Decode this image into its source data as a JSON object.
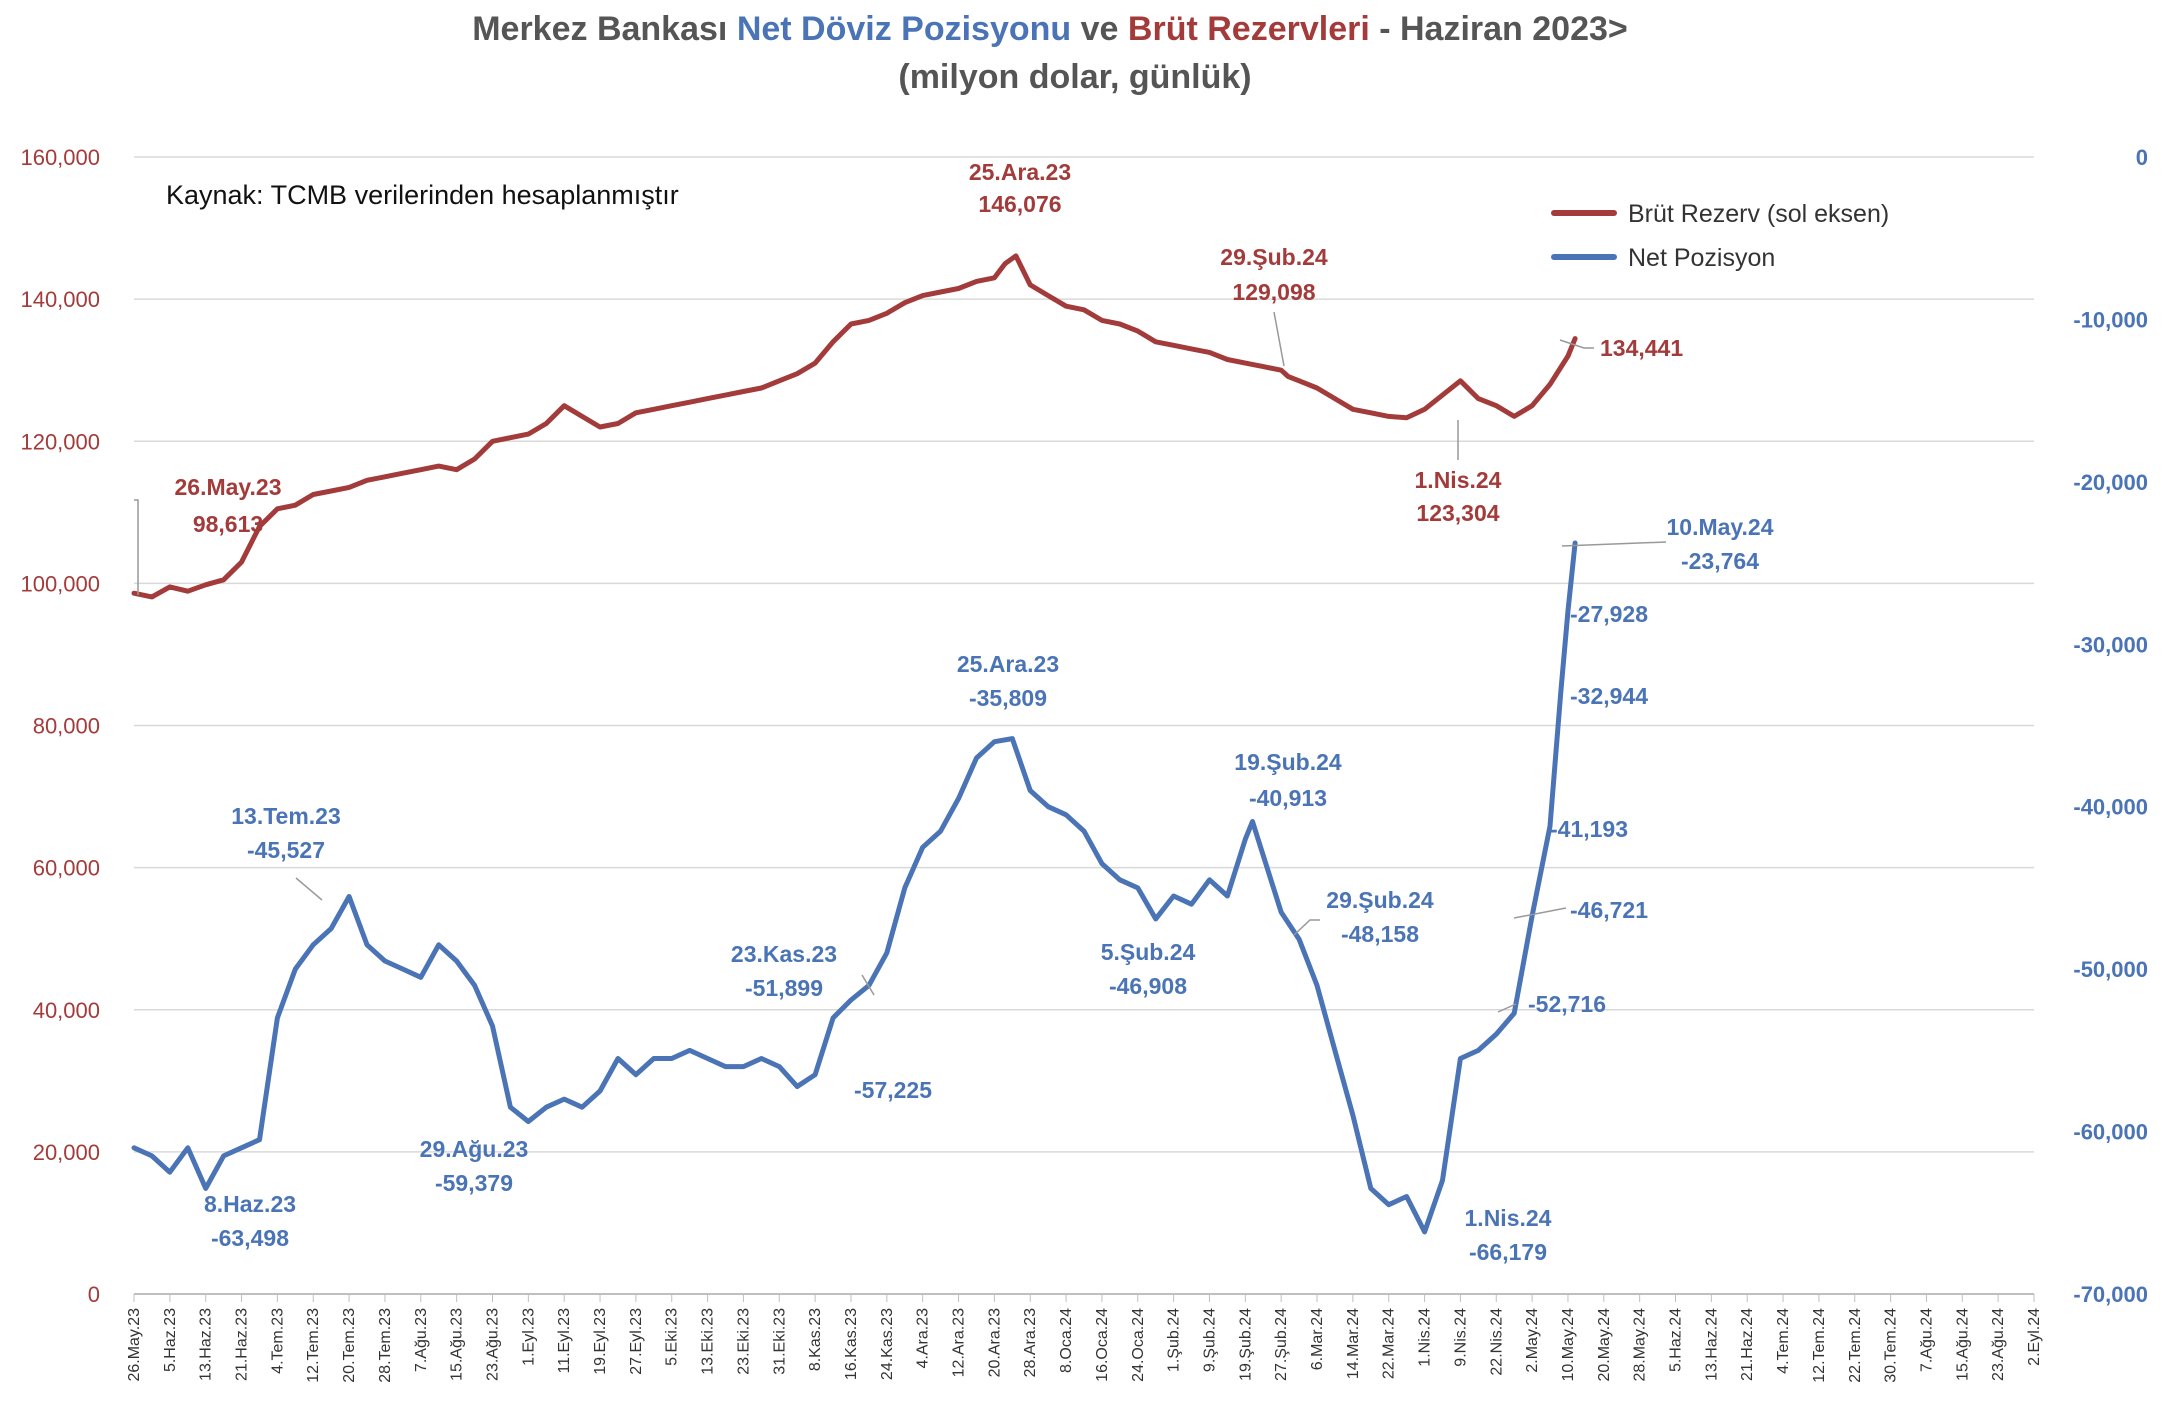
{
  "title": {
    "part1": "Merkez Bankası ",
    "part2": "Net Döviz Pozisyonu",
    "part3": " ve ",
    "part4": "Brüt Rezervleri",
    "part5": " - Haziran 2023>",
    "subtitle": "(milyon dolar, günlük)"
  },
  "source_note": "Kaynak: TCMB verilerinden  hesaplanmıştır",
  "colors": {
    "brut": "#A33B3B",
    "net": "#4A74B5",
    "title_gray": "#555555",
    "grid": "#D9D9D9"
  },
  "chart_data": {
    "type": "line",
    "left_axis": {
      "ticks": [
        "160,000",
        "140,000",
        "120,000",
        "100,000",
        "80,000",
        "60,000",
        "40,000",
        "20,000",
        "0"
      ],
      "values": [
        160000,
        140000,
        120000,
        100000,
        80000,
        60000,
        40000,
        20000,
        0
      ],
      "ylim": [
        0,
        160000
      ]
    },
    "right_axis": {
      "ticks": [
        "0",
        "-10,000",
        "-20,000",
        "-30,000",
        "-40,000",
        "-50,000",
        "-60,000",
        "-70,000"
      ],
      "values": [
        0,
        -10000,
        -20000,
        -30000,
        -40000,
        -50000,
        -60000,
        -70000
      ],
      "ylim": [
        -70000,
        0
      ]
    },
    "x_ticks": [
      "26.May.23",
      "5.Haz.23",
      "13.Haz.23",
      "21.Haz.23",
      "4.Tem.23",
      "12.Tem.23",
      "20.Tem.23",
      "28.Tem.23",
      "7.Ağu.23",
      "15.Ağu.23",
      "23.Ağu.23",
      "1.Eyl.23",
      "11.Eyl.23",
      "19.Eyl.23",
      "27.Eyl.23",
      "5.Eki.23",
      "13.Eki.23",
      "23.Eki.23",
      "31.Eki.23",
      "8.Kas.23",
      "16.Kas.23",
      "24.Kas.23",
      "4.Ara.23",
      "12.Ara.23",
      "20.Ara.23",
      "28.Ara.23",
      "8.Oca.24",
      "16.Oca.24",
      "24.Oca.24",
      "1.Şub.24",
      "9.Şub.24",
      "19.Şub.24",
      "27.Şub.24",
      "6.Mar.24",
      "14.Mar.24",
      "22.Mar.24",
      "1.Nis.24",
      "9.Nis.24",
      "22.Nis.24",
      "2.May.24",
      "10.May.24",
      "20.May.24",
      "28.May.24",
      "5.Haz.24",
      "13.Haz.24",
      "21.Haz.24",
      "4.Tem.24",
      "12.Tem.24",
      "22.Tem.24",
      "30.Tem.24",
      "7.Ağu.24",
      "15.Ağu.24",
      "23.Ağu.24",
      "2.Eyl.24"
    ],
    "legend": {
      "position": "top-right",
      "brut_label": "Brüt Rezerv (sol eksen)",
      "net_label": "Net Pozisyon"
    },
    "series": [
      {
        "name": "Brüt Rezerv (sol eksen)",
        "axis": "left",
        "x_index": [
          0,
          0.5,
          1,
          1.5,
          2,
          2.5,
          3,
          3.5,
          4,
          4.5,
          5,
          5.5,
          6,
          6.5,
          7,
          7.5,
          8,
          8.5,
          9,
          9.5,
          10,
          10.5,
          11,
          11.5,
          12,
          12.5,
          13,
          13.5,
          14,
          14.5,
          15,
          15.5,
          16,
          16.5,
          17,
          17.5,
          18,
          18.5,
          19,
          19.5,
          20,
          20.5,
          21,
          21.5,
          22,
          22.5,
          23,
          23.5,
          24,
          24.3,
          24.6,
          25,
          25.5,
          26,
          26.5,
          27,
          27.5,
          28,
          28.5,
          29,
          29.5,
          30,
          30.5,
          31,
          31.5,
          32,
          32.2,
          32.5,
          33,
          33.5,
          34,
          34.5,
          35,
          35.5,
          36,
          36.5,
          37,
          37.5,
          38,
          38.5,
          39,
          39.5,
          40,
          40.2
        ],
        "values": [
          98613,
          98100,
          99500,
          98900,
          99800,
          100500,
          103000,
          108000,
          110500,
          111000,
          112500,
          113000,
          113500,
          114500,
          115000,
          115500,
          116000,
          116500,
          116000,
          117500,
          120000,
          120500,
          121000,
          122500,
          125000,
          123500,
          122000,
          122500,
          124000,
          124500,
          125000,
          125500,
          126000,
          126500,
          127000,
          127500,
          128500,
          129500,
          131000,
          134000,
          136500,
          137000,
          138000,
          139500,
          140500,
          141000,
          141500,
          142500,
          143000,
          145000,
          146076,
          142000,
          140500,
          139000,
          138500,
          137000,
          136500,
          135500,
          134000,
          133500,
          133000,
          132500,
          131500,
          131000,
          130500,
          130000,
          129098,
          128500,
          127500,
          126000,
          124500,
          124000,
          123500,
          123304,
          124500,
          126500,
          128500,
          126000,
          125000,
          123500,
          125000,
          128000,
          132000,
          134441
        ]
      },
      {
        "name": "Net Pozisyon",
        "axis": "right",
        "x_index": [
          0,
          0.5,
          1,
          1.5,
          2,
          2.5,
          3,
          3.5,
          4,
          4.5,
          5,
          5.5,
          6,
          6.5,
          7,
          7.5,
          8,
          8.5,
          9,
          9.5,
          10,
          10.5,
          11,
          11.5,
          12,
          12.5,
          13,
          13.5,
          14,
          14.5,
          15,
          15.5,
          16,
          16.5,
          17,
          17.5,
          18,
          18.5,
          19,
          19.5,
          20,
          20.5,
          21,
          21.5,
          22,
          22.5,
          23,
          23.5,
          24,
          24.5,
          25,
          25.5,
          26,
          26.5,
          27,
          27.5,
          28,
          28.5,
          29,
          29.5,
          30,
          30.5,
          31,
          31.2,
          31.5,
          32,
          32.5,
          33,
          33.5,
          34,
          34.5,
          35,
          35.5,
          36,
          36.5,
          37,
          37.5,
          38,
          38.5,
          39,
          39.5,
          39.8,
          40,
          40.2
        ],
        "values": [
          -61000,
          -61500,
          -62500,
          -61000,
          -63498,
          -61500,
          -61000,
          -60500,
          -53000,
          -50000,
          -48500,
          -47500,
          -45527,
          -48500,
          -49500,
          -50000,
          -50500,
          -48500,
          -49500,
          -51000,
          -53500,
          -58500,
          -59379,
          -58500,
          -58000,
          -58500,
          -57500,
          -55500,
          -56500,
          -55500,
          -55500,
          -55000,
          -55500,
          -56000,
          -56000,
          -55500,
          -56000,
          -57225,
          -56500,
          -53000,
          -51899,
          -51000,
          -49000,
          -45000,
          -42500,
          -41500,
          -39500,
          -37000,
          -36000,
          -35809,
          -39000,
          -40000,
          -40500,
          -41500,
          -43500,
          -44500,
          -45000,
          -46908,
          -45500,
          -46000,
          -44500,
          -45500,
          -42000,
          -40913,
          -43000,
          -46500,
          -48158,
          -51000,
          -55000,
          -59000,
          -63500,
          -64500,
          -64000,
          -66179,
          -63000,
          -55500,
          -55000,
          -54000,
          -52716,
          -46721,
          -41193,
          -32944,
          -27928,
          -23764
        ]
      }
    ]
  },
  "annotations": {
    "b1": {
      "date": "26.May.23",
      "value": "98,613"
    },
    "b2": {
      "date": "25.Ara.23",
      "value": "146,076"
    },
    "b3": {
      "date": "29.Şub.24",
      "value": "129,098"
    },
    "b4": {
      "date": "1.Nis.24",
      "value": "123,304"
    },
    "b5": {
      "value": "134,441"
    },
    "n1": {
      "date": "13.Tem.23",
      "value": "-45,527"
    },
    "n2": {
      "date": "8.Haz.23",
      "value": "-63,498"
    },
    "n3": {
      "date": "29.Ağu.23",
      "value": "-59,379"
    },
    "n4": {
      "date": "23.Kas.23",
      "value": "-51,899"
    },
    "n5": {
      "value": "-57,225"
    },
    "n6": {
      "date": "25.Ara.23",
      "value": "-35,809"
    },
    "n7": {
      "date": "19.Şub.24",
      "value": "-40,913"
    },
    "n8": {
      "date": "5.Şub.24",
      "value": "-46,908"
    },
    "n9": {
      "date": "29.Şub.24",
      "value": "-48,158"
    },
    "n10": {
      "date": "1.Nis.24",
      "value": "-66,179"
    },
    "n11": {
      "date": "10.May.24",
      "value": "-23,764"
    },
    "n12": {
      "value": "-27,928"
    },
    "n13": {
      "value": "-32,944"
    },
    "n14": {
      "value": "-41,193"
    },
    "n15": {
      "value": "-46,721"
    },
    "n16": {
      "value": "-52,716"
    }
  }
}
